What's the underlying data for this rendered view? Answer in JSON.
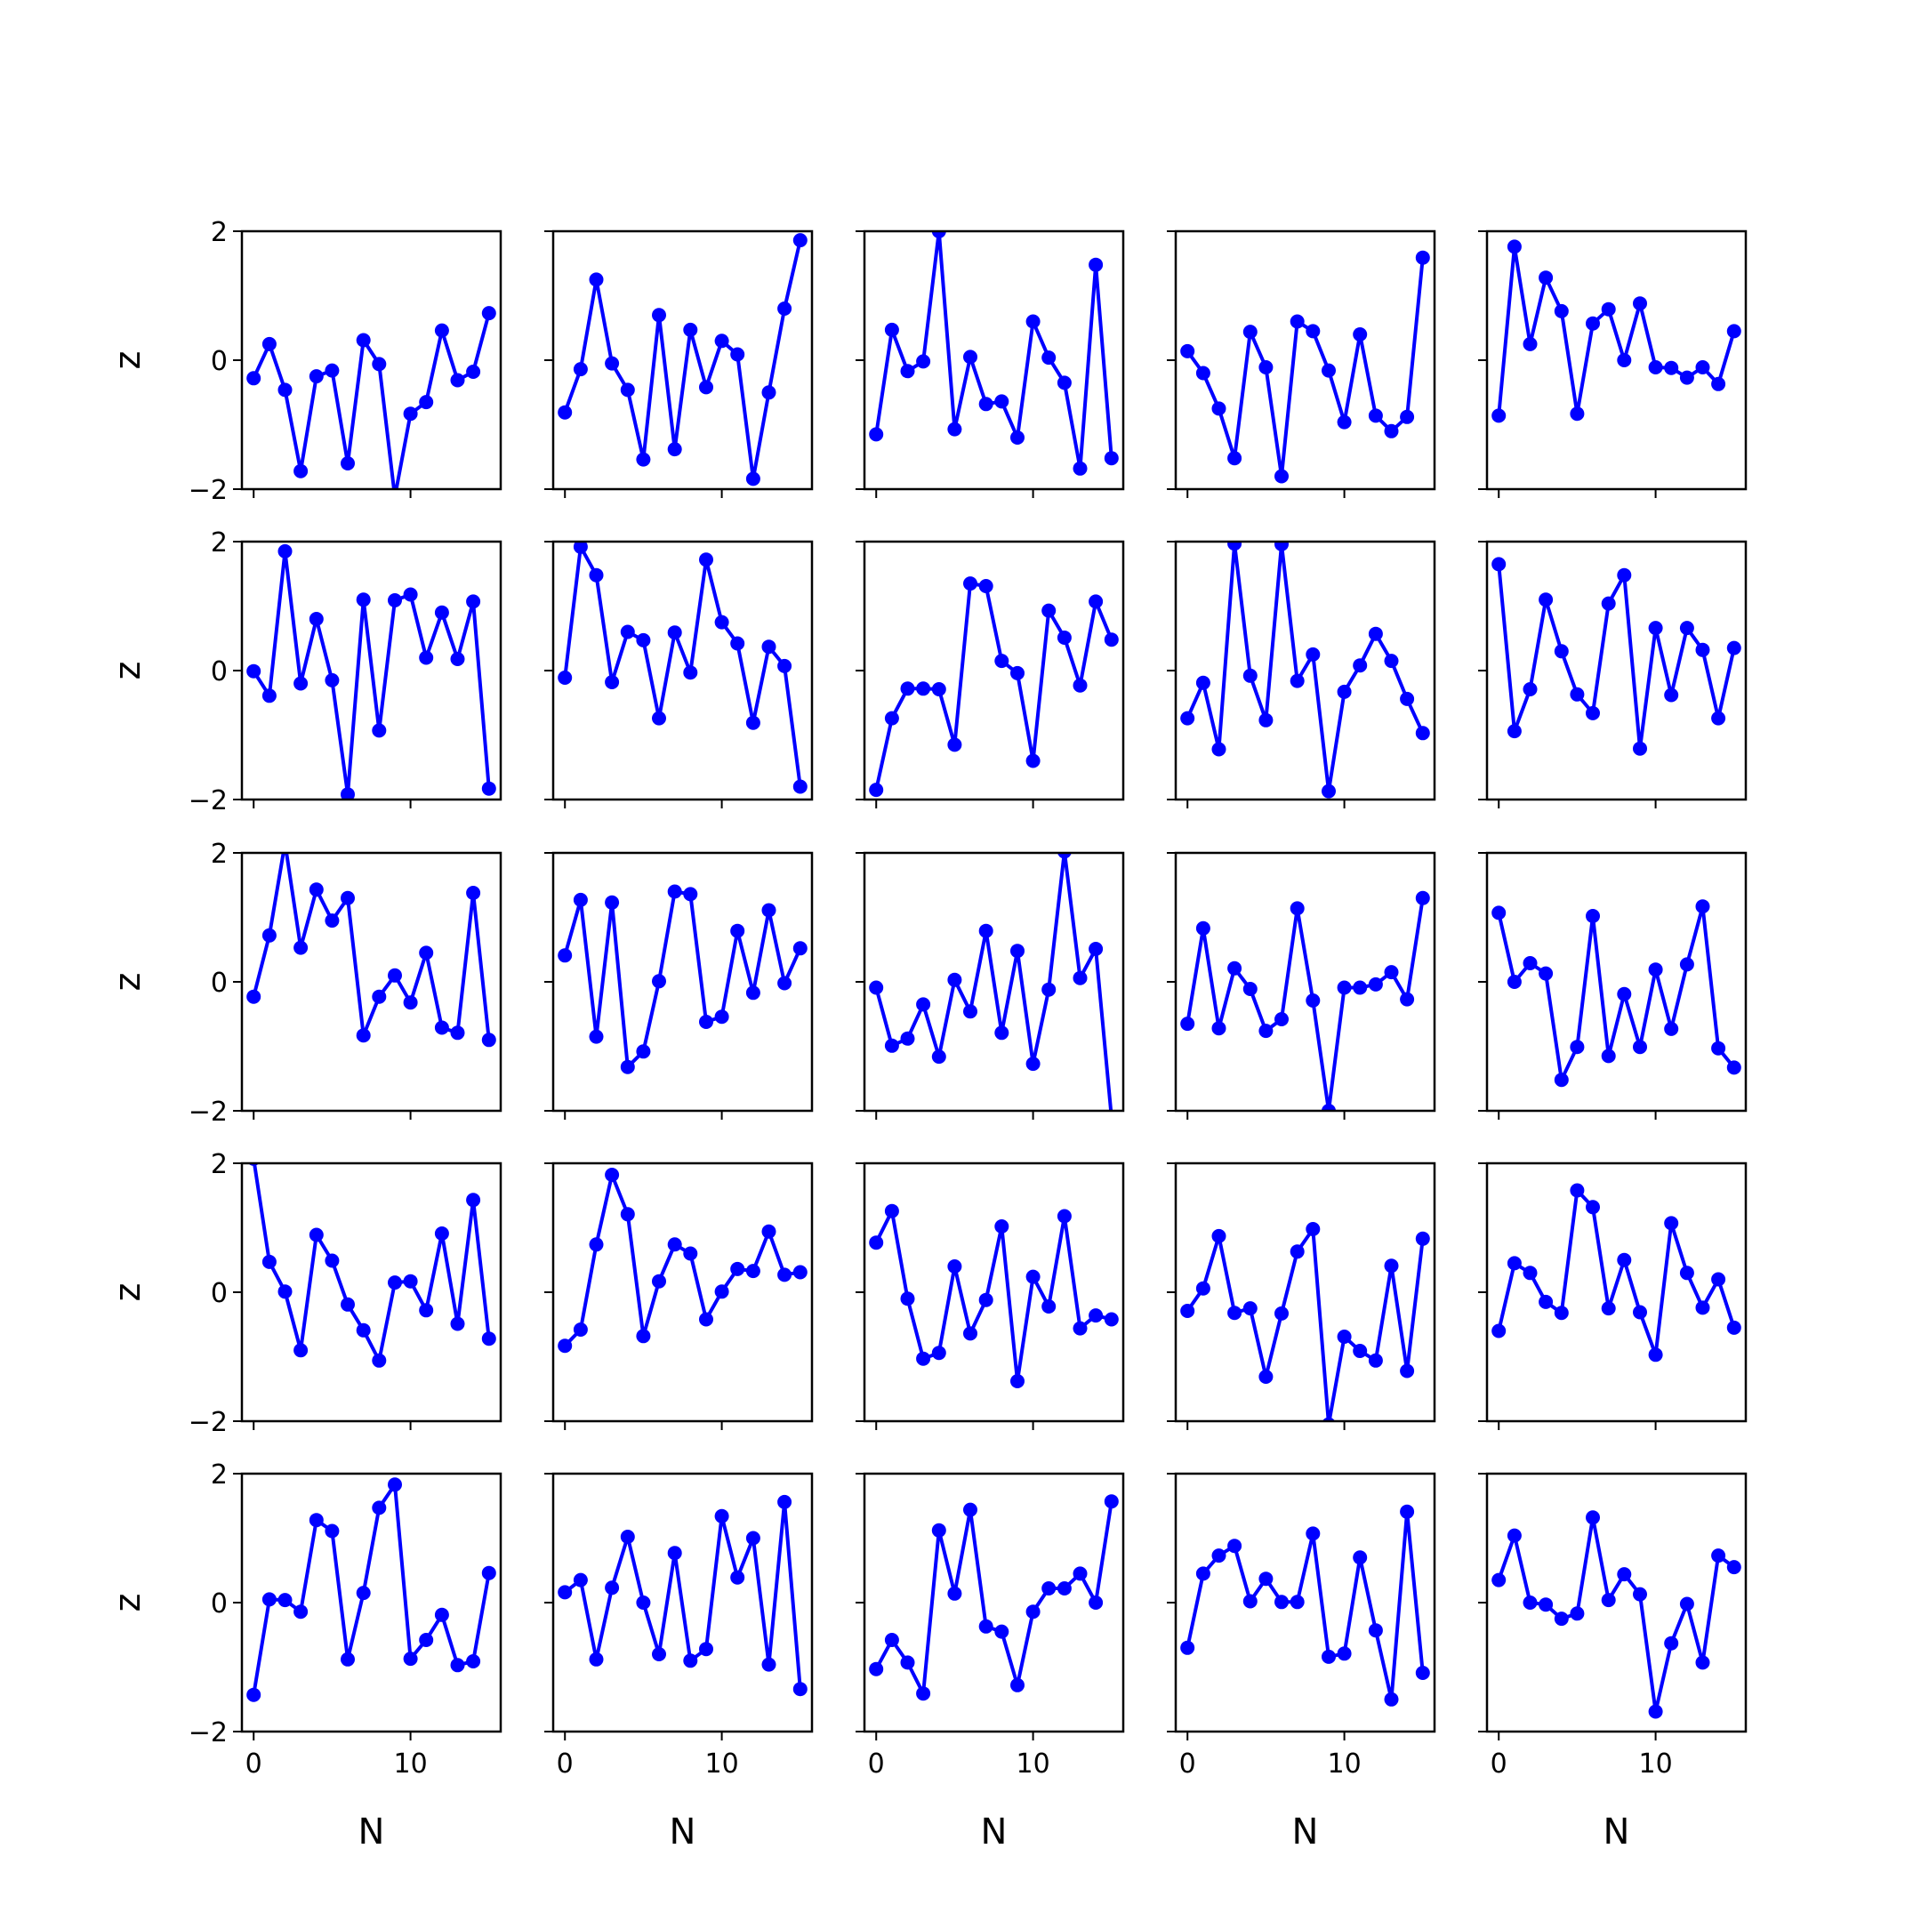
{
  "chart_data": {
    "type": "line",
    "layout": "grid",
    "grid_rows": 5,
    "grid_cols": 5,
    "shared_axes": true,
    "xlabel": "N",
    "ylabel": "z",
    "xlim": [
      -0.75,
      15.75
    ],
    "ylim": [
      -2,
      2
    ],
    "xticks": [
      0,
      10
    ],
    "xtick_labels": [
      "0",
      "10"
    ],
    "yticks": [
      -2,
      0,
      2
    ],
    "ytick_labels": [
      "−2",
      "0",
      "2"
    ],
    "grid": false,
    "legend": false,
    "line_color": "#0000ff",
    "marker": "circle",
    "x": [
      0,
      1,
      2,
      3,
      4,
      5,
      6,
      7,
      8,
      9,
      10,
      11,
      12,
      13,
      14,
      15
    ],
    "panels": [
      {
        "values": [
          -0.28,
          0.25,
          -0.46,
          -1.72,
          -0.25,
          -0.16,
          -1.6,
          0.31,
          -0.06,
          -2.12,
          -0.83,
          -0.65,
          0.46,
          -0.31,
          -0.18,
          0.73
        ]
      },
      {
        "values": [
          -0.81,
          -0.14,
          1.25,
          -0.05,
          -0.46,
          -1.54,
          0.7,
          -1.38,
          0.47,
          -0.42,
          0.3,
          0.09,
          -1.84,
          -0.5,
          0.8,
          1.86
        ]
      },
      {
        "values": [
          -1.15,
          0.47,
          -0.17,
          -0.02,
          2.0,
          -1.07,
          0.05,
          -0.68,
          -0.64,
          -1.2,
          0.6,
          0.04,
          -0.35,
          -1.68,
          1.48,
          -1.52
        ]
      },
      {
        "values": [
          0.14,
          -0.2,
          -0.75,
          -1.52,
          0.44,
          -0.11,
          -1.8,
          0.6,
          0.45,
          -0.16,
          -0.96,
          0.4,
          -0.86,
          -1.1,
          -0.88,
          1.59
        ]
      },
      {
        "values": [
          -0.86,
          1.76,
          0.25,
          1.28,
          0.76,
          -0.83,
          0.57,
          0.79,
          0.0,
          0.88,
          -0.11,
          -0.12,
          -0.27,
          -0.11,
          -0.37,
          0.45
        ]
      },
      {
        "values": [
          -0.01,
          -0.39,
          1.85,
          -0.2,
          0.8,
          -0.15,
          -1.92,
          1.1,
          -0.93,
          1.09,
          1.18,
          0.2,
          0.9,
          0.18,
          1.07,
          -1.83
        ]
      },
      {
        "values": [
          -0.11,
          1.92,
          1.48,
          -0.18,
          0.6,
          0.47,
          -0.74,
          0.59,
          -0.03,
          1.72,
          0.75,
          0.42,
          -0.81,
          0.37,
          0.07,
          -1.8
        ]
      },
      {
        "values": [
          -1.85,
          -0.74,
          -0.28,
          -0.28,
          -0.29,
          -1.15,
          1.35,
          1.31,
          0.15,
          -0.04,
          -1.4,
          0.93,
          0.51,
          -0.23,
          1.07,
          0.48
        ]
      },
      {
        "values": [
          -0.74,
          -0.19,
          -1.22,
          1.97,
          -0.08,
          -0.77,
          1.96,
          -0.16,
          0.25,
          -1.87,
          -0.33,
          0.08,
          0.57,
          0.15,
          -0.44,
          -0.97
        ]
      },
      {
        "values": [
          1.65,
          -0.94,
          -0.29,
          1.1,
          0.3,
          -0.37,
          -0.66,
          1.04,
          1.48,
          -1.21,
          0.66,
          -0.38,
          0.66,
          0.32,
          -0.74,
          0.35
        ]
      },
      {
        "values": [
          -0.23,
          0.72,
          2.15,
          0.53,
          1.43,
          0.95,
          1.3,
          -0.83,
          -0.23,
          0.1,
          -0.32,
          0.45,
          -0.71,
          -0.79,
          1.38,
          -0.9
        ]
      },
      {
        "values": [
          0.41,
          1.27,
          -0.85,
          1.23,
          -1.32,
          -1.08,
          0.01,
          1.4,
          1.36,
          -0.62,
          -0.54,
          0.79,
          -0.17,
          1.11,
          -0.02,
          0.52
        ]
      },
      {
        "values": [
          -0.09,
          -0.99,
          -0.88,
          -0.35,
          -1.16,
          0.03,
          -0.46,
          0.79,
          -0.79,
          0.48,
          -1.27,
          -0.12,
          2.02,
          0.06,
          0.51,
          -2.1
        ]
      },
      {
        "values": [
          -0.65,
          0.83,
          -0.72,
          0.21,
          -0.11,
          -0.76,
          -0.58,
          1.14,
          -0.29,
          -2.0,
          -0.09,
          -0.09,
          -0.04,
          0.15,
          -0.27,
          1.3
        ]
      },
      {
        "values": [
          1.07,
          0.0,
          0.29,
          0.13,
          -1.52,
          -1.01,
          1.02,
          -1.15,
          -0.19,
          -1.01,
          0.19,
          -0.73,
          0.27,
          1.17,
          -1.03,
          -1.33
        ]
      },
      {
        "values": [
          2.07,
          0.47,
          0.01,
          -0.9,
          0.89,
          0.49,
          -0.19,
          -0.59,
          -1.06,
          0.15,
          0.17,
          -0.28,
          0.91,
          -0.49,
          1.43,
          -0.72
        ]
      },
      {
        "values": [
          -0.83,
          -0.58,
          0.74,
          1.82,
          1.21,
          -0.68,
          0.17,
          0.74,
          0.6,
          -0.42,
          0.01,
          0.36,
          0.33,
          0.94,
          0.27,
          0.31
        ]
      },
      {
        "values": [
          0.77,
          1.26,
          -0.1,
          -1.03,
          -0.94,
          0.4,
          -0.64,
          -0.12,
          1.02,
          -1.38,
          0.24,
          -0.22,
          1.18,
          -0.56,
          -0.36,
          -0.42
        ]
      },
      {
        "values": [
          -0.29,
          0.06,
          0.87,
          -0.32,
          -0.25,
          -1.31,
          -0.33,
          0.63,
          0.98,
          -2.05,
          -0.69,
          -0.91,
          -1.06,
          0.41,
          -1.22,
          0.83
        ]
      },
      {
        "values": [
          -0.6,
          0.45,
          0.3,
          -0.15,
          -0.32,
          1.58,
          1.32,
          -0.25,
          0.5,
          -0.31,
          -0.97,
          1.07,
          0.3,
          -0.24,
          0.2,
          -0.55
        ]
      },
      {
        "values": [
          -1.43,
          0.05,
          0.04,
          -0.14,
          1.28,
          1.11,
          -0.88,
          0.15,
          1.47,
          1.83,
          -0.87,
          -0.58,
          -0.19,
          -0.97,
          -0.91,
          0.46
        ]
      },
      {
        "values": [
          0.16,
          0.35,
          -0.88,
          0.23,
          1.02,
          0.0,
          -0.8,
          0.77,
          -0.9,
          -0.72,
          1.34,
          0.39,
          1.0,
          -0.96,
          1.56,
          -1.34
        ]
      },
      {
        "values": [
          -1.03,
          -0.58,
          -0.93,
          -1.41,
          1.12,
          0.14,
          1.44,
          -0.37,
          -0.45,
          -1.28,
          -0.14,
          0.22,
          0.22,
          0.45,
          0.0,
          1.57
        ]
      },
      {
        "values": [
          -0.7,
          0.45,
          0.73,
          0.88,
          0.02,
          0.37,
          0.01,
          0.01,
          1.07,
          -0.84,
          -0.79,
          0.7,
          -0.43,
          -1.5,
          1.41,
          -1.09
        ]
      },
      {
        "values": [
          0.35,
          1.04,
          0.0,
          -0.03,
          -0.25,
          -0.17,
          1.32,
          0.04,
          0.44,
          0.13,
          -1.69,
          -0.63,
          -0.02,
          -0.93,
          0.73,
          0.55
        ]
      }
    ]
  }
}
